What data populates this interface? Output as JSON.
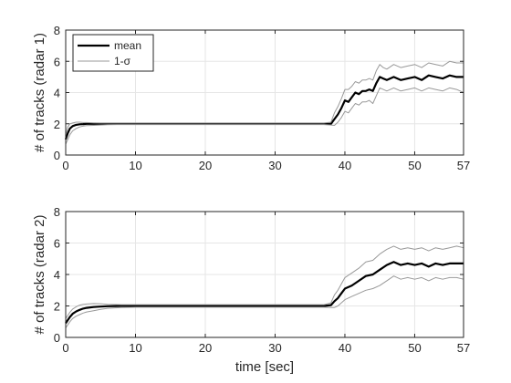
{
  "figure": {
    "background": "#ffffff",
    "axis_color": "#262626",
    "grid_color": "#e6e6e6",
    "mean_color": "#000000",
    "sigma_color": "#999999"
  },
  "chart_data": [
    {
      "type": "line",
      "title": "",
      "xlabel": "",
      "ylabel": "# of tracks (radar 1)",
      "xlim": [
        0,
        57
      ],
      "ylim": [
        0,
        8
      ],
      "xticks": [
        0,
        10,
        20,
        30,
        40,
        50,
        57
      ],
      "yticks": [
        0,
        2,
        4,
        6,
        8
      ],
      "grid": true,
      "legend": {
        "placement": "top-left",
        "entries": [
          "mean",
          "1-σ"
        ]
      },
      "x": [
        0,
        0.3,
        0.6,
        1,
        1.5,
        2,
        2.5,
        3,
        4,
        5,
        6,
        8,
        10,
        12,
        15,
        18,
        20,
        22,
        25,
        28,
        30,
        33,
        35,
        37,
        38,
        38.5,
        39,
        39.5,
        40,
        40.5,
        41,
        41.5,
        42,
        42.5,
        43,
        43.5,
        44,
        44.5,
        45,
        45.5,
        46,
        47,
        48,
        49,
        50,
        51,
        52,
        53,
        54,
        55,
        56,
        57
      ],
      "series": [
        {
          "name": "mean",
          "values": [
            1.0,
            1.4,
            1.7,
            1.85,
            1.93,
            1.97,
            1.98,
            2.0,
            2.0,
            2.0,
            2.0,
            2.0,
            2.0,
            2.0,
            2.0,
            2.0,
            2.0,
            2.0,
            2.0,
            2.0,
            2.0,
            2.0,
            2.0,
            2.0,
            2.0,
            2.3,
            2.6,
            3.0,
            3.5,
            3.4,
            3.7,
            4.0,
            3.9,
            4.1,
            4.1,
            4.2,
            4.1,
            4.6,
            5.0,
            4.9,
            4.8,
            5.0,
            4.8,
            4.9,
            5.0,
            4.8,
            5.1,
            5.0,
            4.9,
            5.1,
            5.0,
            5.0
          ]
        },
        {
          "name": "1-σ",
          "values": [
            0.7,
            1.0,
            1.3,
            1.55,
            1.7,
            1.8,
            1.85,
            1.88,
            1.9,
            1.92,
            1.94,
            1.95,
            1.95,
            1.95,
            1.95,
            1.95,
            1.95,
            1.95,
            1.95,
            1.95,
            1.95,
            1.95,
            1.95,
            1.95,
            1.92,
            1.9,
            2.1,
            2.4,
            2.8,
            2.7,
            3.0,
            3.3,
            3.2,
            3.4,
            3.4,
            3.5,
            3.3,
            3.8,
            4.3,
            4.2,
            4.1,
            4.3,
            4.1,
            4.2,
            4.3,
            4.1,
            4.3,
            4.2,
            4.1,
            4.3,
            4.2,
            4.0
          ]
        },
        {
          "name": "1-σ",
          "values": [
            1.3,
            1.8,
            2.0,
            2.05,
            2.1,
            2.1,
            2.08,
            2.08,
            2.06,
            2.05,
            2.05,
            2.05,
            2.05,
            2.05,
            2.05,
            2.05,
            2.05,
            2.05,
            2.05,
            2.05,
            2.05,
            2.05,
            2.05,
            2.05,
            2.1,
            2.7,
            3.1,
            3.6,
            4.2,
            4.2,
            4.4,
            4.7,
            4.6,
            4.8,
            4.8,
            4.9,
            4.8,
            5.4,
            5.8,
            5.6,
            5.5,
            5.8,
            5.6,
            5.7,
            5.8,
            5.6,
            5.9,
            5.8,
            5.7,
            6.0,
            5.9,
            5.9
          ]
        }
      ]
    },
    {
      "type": "line",
      "title": "",
      "xlabel": "time [sec]",
      "ylabel": "# of tracks (radar 2)",
      "xlim": [
        0,
        57
      ],
      "ylim": [
        0,
        8
      ],
      "xticks": [
        0,
        10,
        20,
        30,
        40,
        50,
        57
      ],
      "yticks": [
        0,
        2,
        4,
        6,
        8
      ],
      "grid": true,
      "legend": null,
      "x": [
        0,
        0.3,
        0.6,
        1,
        1.5,
        2,
        2.5,
        3,
        4,
        5,
        6,
        8,
        10,
        12,
        15,
        18,
        20,
        22,
        25,
        28,
        30,
        33,
        35,
        37,
        38,
        38.5,
        39,
        39.5,
        40,
        41,
        42,
        43,
        44,
        45,
        46,
        47,
        48,
        49,
        50,
        51,
        52,
        53,
        54,
        55,
        56,
        57
      ],
      "series": [
        {
          "name": "mean",
          "values": [
            0.9,
            1.1,
            1.3,
            1.5,
            1.65,
            1.75,
            1.83,
            1.88,
            1.93,
            1.96,
            1.98,
            2.0,
            2.0,
            2.0,
            2.0,
            2.0,
            2.0,
            2.0,
            2.0,
            2.0,
            2.0,
            2.0,
            2.0,
            2.0,
            2.05,
            2.3,
            2.5,
            2.8,
            3.1,
            3.3,
            3.6,
            3.9,
            4.0,
            4.3,
            4.6,
            4.8,
            4.6,
            4.7,
            4.6,
            4.7,
            4.5,
            4.7,
            4.6,
            4.7,
            4.7,
            4.7
          ]
        },
        {
          "name": "1-σ",
          "values": [
            0.6,
            0.8,
            1.0,
            1.2,
            1.35,
            1.45,
            1.55,
            1.62,
            1.7,
            1.78,
            1.85,
            1.9,
            1.92,
            1.92,
            1.92,
            1.92,
            1.92,
            1.92,
            1.92,
            1.92,
            1.92,
            1.92,
            1.92,
            1.92,
            1.9,
            1.9,
            2.0,
            2.2,
            2.4,
            2.6,
            2.8,
            3.0,
            3.1,
            3.3,
            3.6,
            3.9,
            3.7,
            3.8,
            3.7,
            3.8,
            3.6,
            3.8,
            3.7,
            3.8,
            3.8,
            3.7
          ]
        },
        {
          "name": "1-σ",
          "values": [
            1.2,
            1.4,
            1.6,
            1.8,
            1.95,
            2.05,
            2.1,
            2.12,
            2.15,
            2.14,
            2.1,
            2.08,
            2.08,
            2.08,
            2.08,
            2.08,
            2.08,
            2.08,
            2.08,
            2.08,
            2.08,
            2.08,
            2.08,
            2.08,
            2.2,
            2.7,
            3.0,
            3.4,
            3.8,
            4.1,
            4.4,
            4.8,
            4.9,
            5.3,
            5.6,
            5.8,
            5.6,
            5.7,
            5.6,
            5.7,
            5.5,
            5.7,
            5.6,
            5.7,
            5.8,
            5.7
          ]
        }
      ]
    }
  ]
}
